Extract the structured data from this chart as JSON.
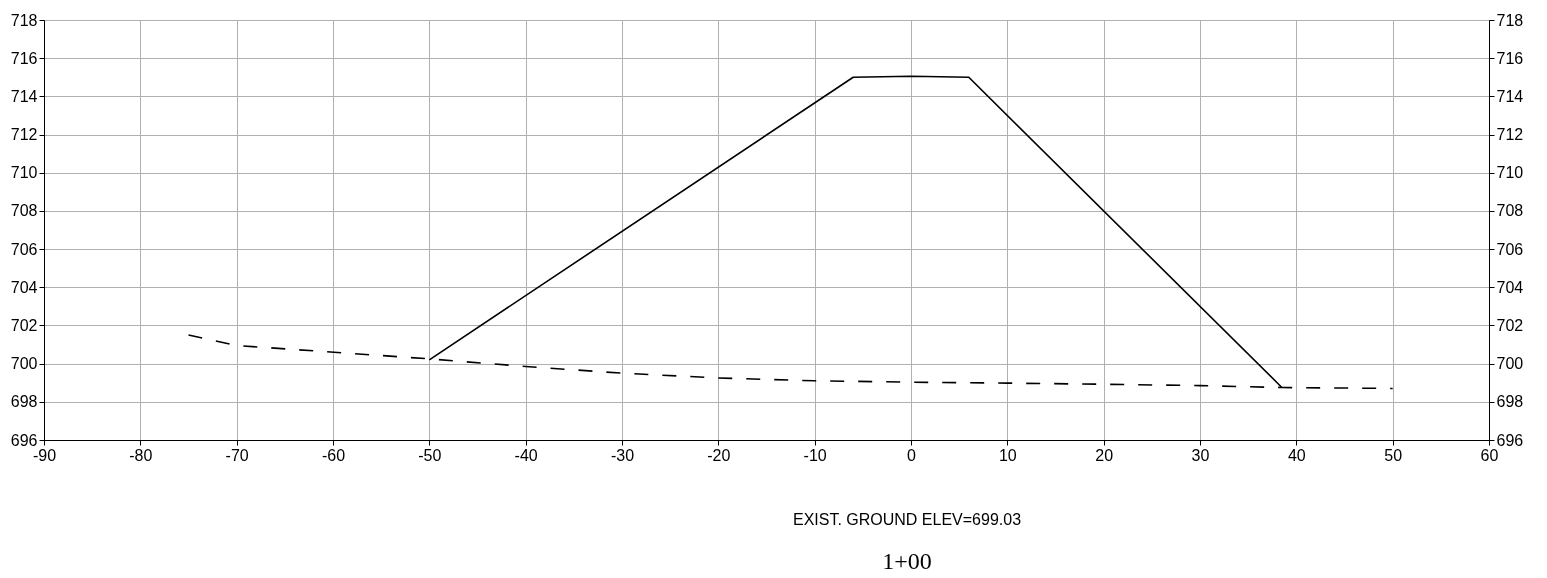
{
  "chart_data": {
    "type": "line",
    "series": [
      {
        "color": "#000000",
        "line_style": "solid",
        "x": [
          -50,
          -6,
          0,
          6,
          38.5
        ],
        "values": [
          700.2,
          715.0,
          715.05,
          715.0,
          698.75
        ]
      },
      {
        "color": "#000000",
        "line_style": "dashed",
        "x": [
          -75,
          -70,
          -50,
          -40,
          -30,
          -20,
          -10,
          0,
          10,
          20,
          30,
          38.5,
          50
        ],
        "values": [
          701.5,
          700.95,
          700.25,
          699.85,
          699.5,
          699.25,
          699.1,
          699.03,
          698.98,
          698.92,
          698.85,
          698.75,
          698.7
        ]
      }
    ],
    "xlim": [
      -90,
      60
    ],
    "xticks": [
      -90,
      -80,
      -70,
      -60,
      -50,
      -40,
      -30,
      -20,
      -10,
      0,
      10,
      20,
      30,
      40,
      50,
      60
    ],
    "ylim": [
      696,
      718
    ],
    "yticks": [
      696,
      698,
      700,
      702,
      704,
      706,
      708,
      710,
      712,
      714,
      716,
      718
    ],
    "y2lim": [
      696,
      718
    ],
    "y2ticks": [
      696,
      698,
      700,
      702,
      704,
      706,
      708,
      710,
      712,
      714,
      716,
      718
    ],
    "grid": true,
    "annotations": [
      "EXIST. GROUND ELEV=699.03",
      "1+00"
    ]
  }
}
